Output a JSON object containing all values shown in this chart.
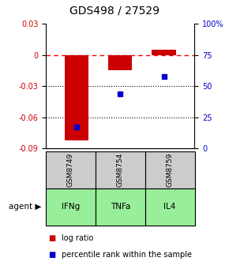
{
  "title": "GDS498 / 27529",
  "samples": [
    "GSM8749",
    "GSM8754",
    "GSM8759"
  ],
  "agents": [
    "IFNg",
    "TNFa",
    "IL4"
  ],
  "log_ratios": [
    -0.082,
    -0.015,
    0.005
  ],
  "percentile_ranks": [
    17,
    44,
    58
  ],
  "left_yticks": [
    0.03,
    0,
    -0.03,
    -0.06,
    -0.09
  ],
  "right_yticks": [
    100,
    75,
    50,
    25,
    0
  ],
  "right_yticklabels": [
    "100%",
    "75",
    "50",
    "25",
    "0"
  ],
  "bar_color": "#cc0000",
  "dot_color": "#0000cc",
  "agent_bg_color": "#99ee99",
  "sample_bg_color": "#cccccc",
  "title_fontsize": 10,
  "tick_fontsize": 7,
  "legend_fontsize": 7,
  "bar_width": 0.55
}
